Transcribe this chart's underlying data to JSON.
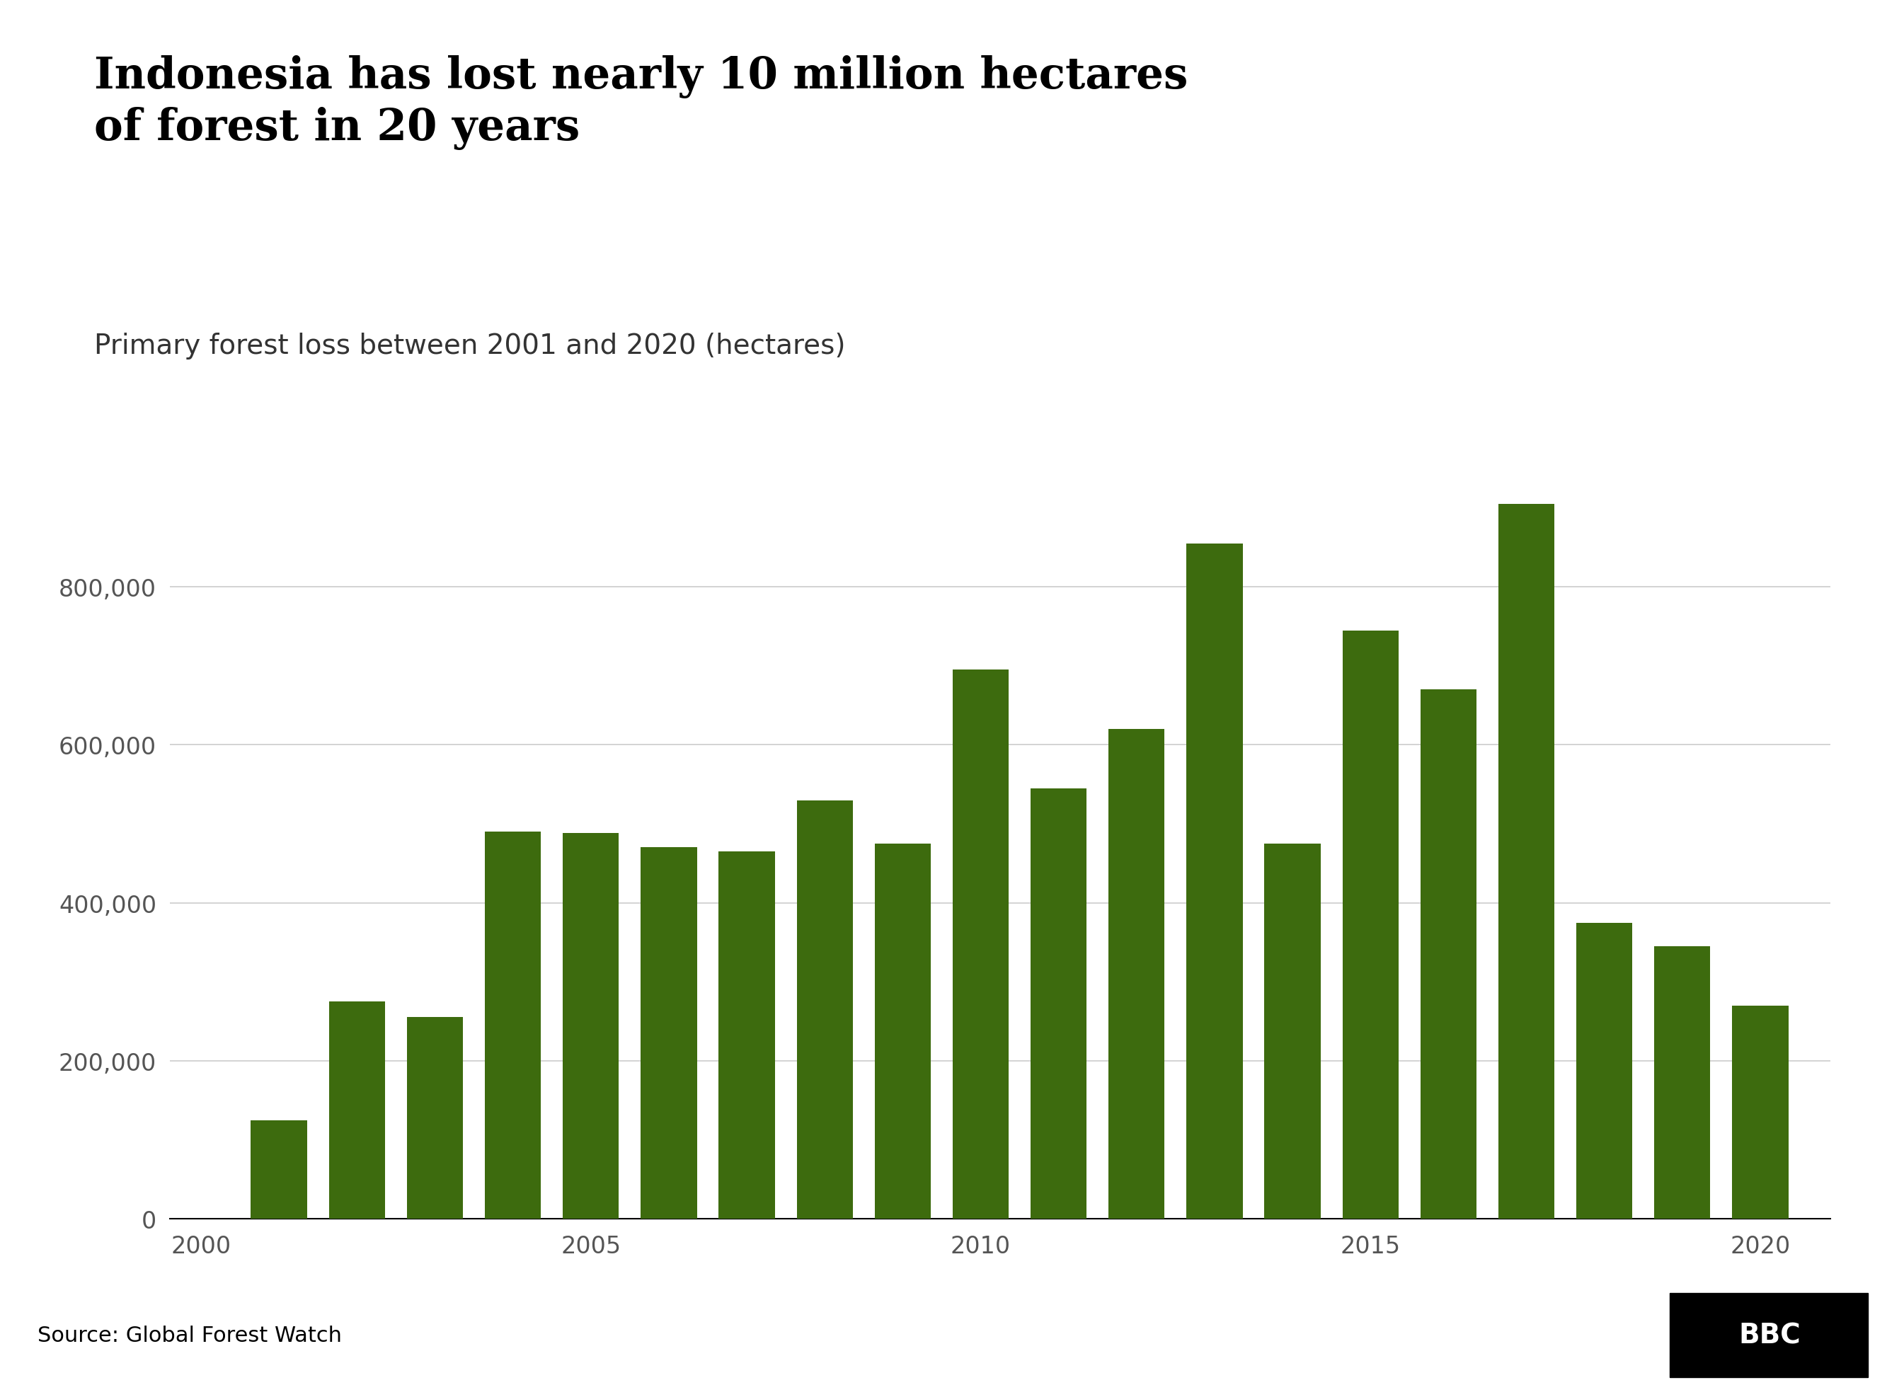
{
  "title": "Indonesia has lost nearly 10 million hectares\nof forest in 20 years",
  "subtitle": "Primary forest loss between 2001 and 2020 (hectares)",
  "source": "Source: Global Forest Watch",
  "years": [
    2001,
    2002,
    2003,
    2004,
    2005,
    2006,
    2007,
    2008,
    2009,
    2010,
    2011,
    2012,
    2013,
    2014,
    2015,
    2016,
    2017,
    2018,
    2019,
    2020
  ],
  "values": [
    125000,
    275000,
    255000,
    490000,
    488000,
    470000,
    465000,
    530000,
    475000,
    695000,
    545000,
    620000,
    855000,
    475000,
    745000,
    670000,
    905000,
    375000,
    345000,
    270000
  ],
  "bar_color": "#3d6b0e",
  "background_color": "#ffffff",
  "ylim": [
    0,
    1000000
  ],
  "ytick_values": [
    0,
    200000,
    400000,
    600000,
    800000
  ],
  "xtick_values": [
    2000,
    2005,
    2010,
    2015,
    2020
  ],
  "title_fontsize": 44,
  "subtitle_fontsize": 28,
  "tick_fontsize": 24,
  "source_fontsize": 22,
  "title_color": "#000000",
  "subtitle_color": "#333333",
  "tick_color": "#555555",
  "grid_color": "#cccccc",
  "axis_color": "#000000",
  "footer_bg_color": "#e0e0e0",
  "bbc_box_color": "#000000",
  "bbc_text_color": "#ffffff"
}
